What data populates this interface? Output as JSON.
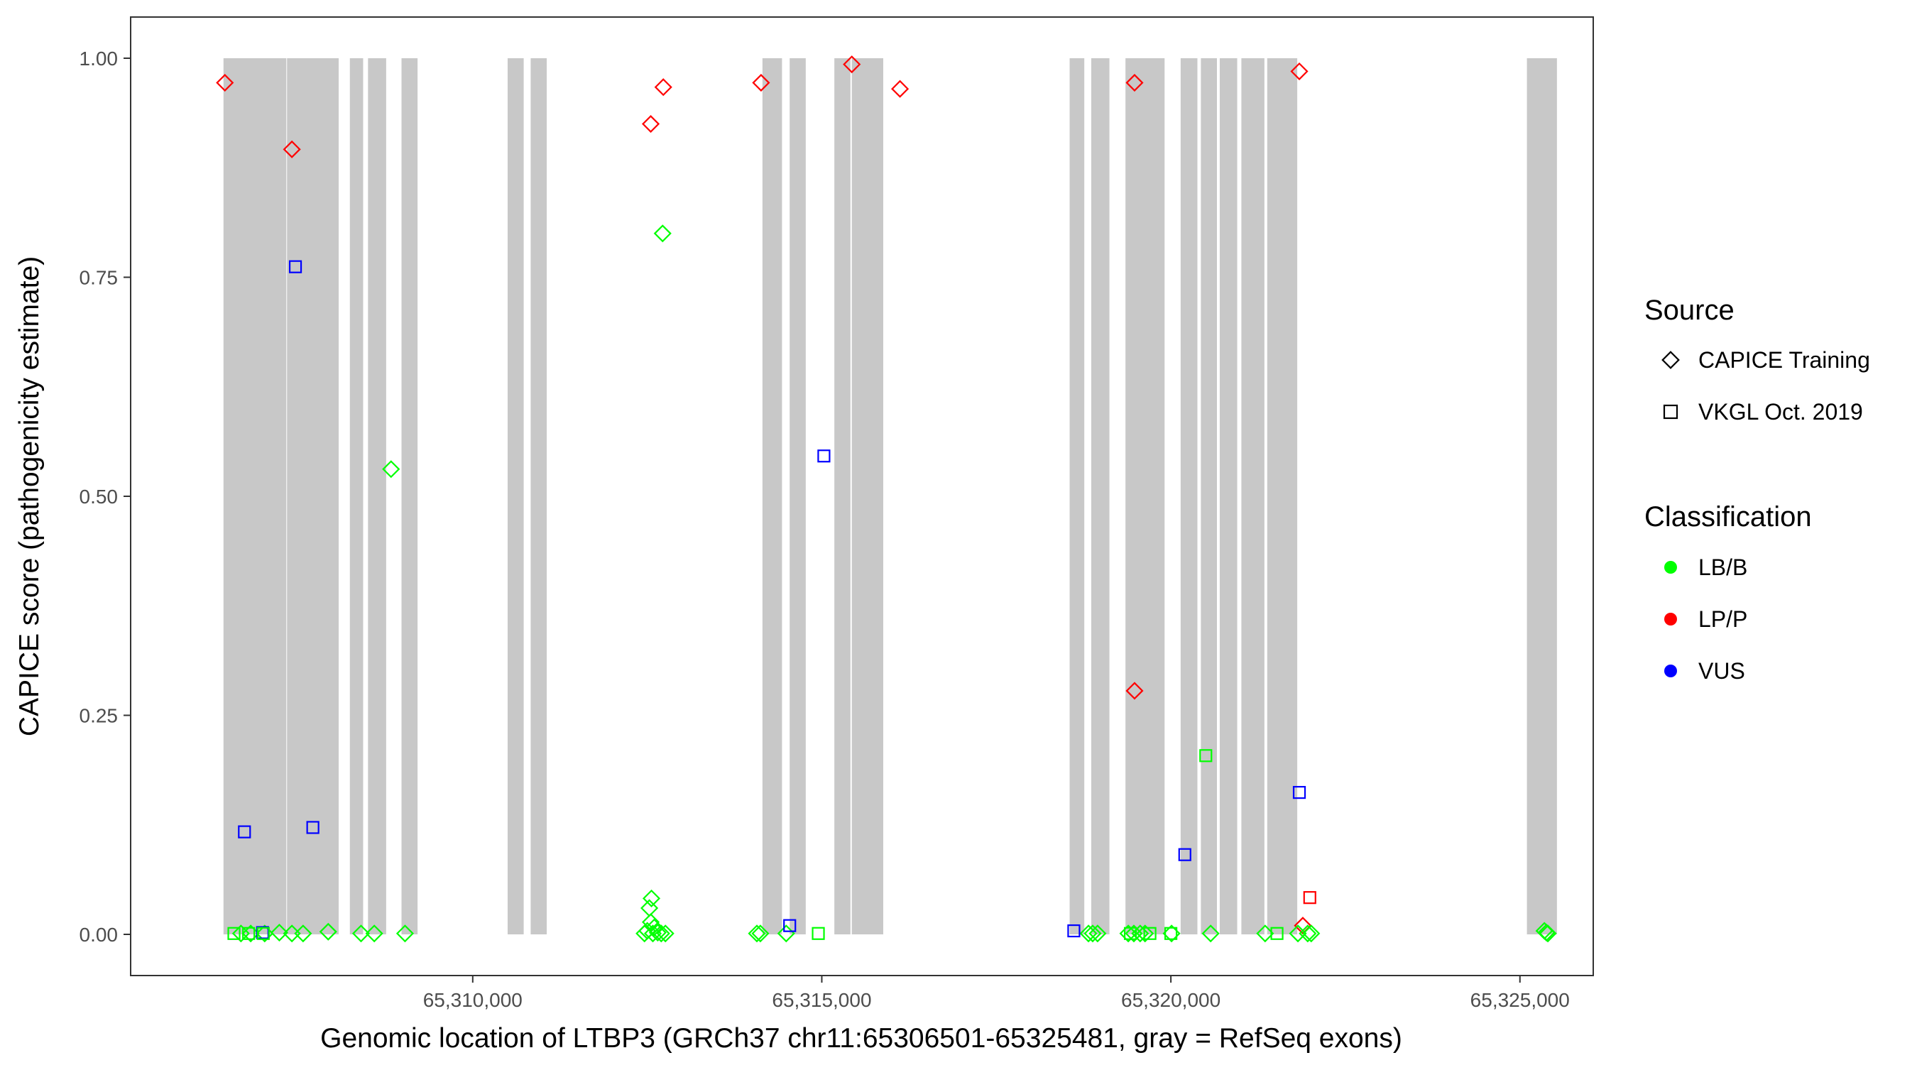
{
  "chart_data": {
    "type": "scatter",
    "xlabel": "Genomic location of LTBP3 (GRCh37 chr11:65306501-65325481, gray = RefSeq exons)",
    "ylabel": "CAPICE score (pathogenicity estimate)",
    "xlim": [
      65305100,
      65326050
    ],
    "ylim": [
      -0.047,
      1.047
    ],
    "x_ticks": [
      65310000,
      65315000,
      65320000,
      65325000
    ],
    "x_tick_labels": [
      "65,310,000",
      "65,315,000",
      "65,320,000",
      "65,325,000"
    ],
    "y_ticks": [
      0,
      0.25,
      0.5,
      0.75,
      1.0
    ],
    "y_tick_labels": [
      "0.00",
      "0.25",
      "0.50",
      "0.75",
      "1.00"
    ],
    "grid": false,
    "exons_color": "#c8c8c8",
    "exons": [
      [
        65306430,
        65307330
      ],
      [
        65307340,
        65308080
      ],
      [
        65308240,
        65308430
      ],
      [
        65308500,
        65308760
      ],
      [
        65308980,
        65309210
      ],
      [
        65310500,
        65310730
      ],
      [
        65310830,
        65311060
      ],
      [
        65314150,
        65314430
      ],
      [
        65314540,
        65314770
      ],
      [
        65315180,
        65315410
      ],
      [
        65315430,
        65315880
      ],
      [
        65318550,
        65318760
      ],
      [
        65318860,
        65319120
      ],
      [
        65319350,
        65319910
      ],
      [
        65320140,
        65320380
      ],
      [
        65320430,
        65320660
      ],
      [
        65320700,
        65320950
      ],
      [
        65321010,
        65321340
      ],
      [
        65321380,
        65321810
      ],
      [
        65325100,
        65325530
      ]
    ],
    "legend": {
      "position": "right",
      "source_title": "Source",
      "source_entries": [
        {
          "label": "CAPICE Training",
          "shape": "diamond"
        },
        {
          "label": "VKGL Oct. 2019",
          "shape": "square"
        }
      ],
      "class_title": "Classification",
      "class_entries": [
        {
          "label": "LB/B",
          "color": "#00ff00"
        },
        {
          "label": "LP/P",
          "color": "#ff0000"
        },
        {
          "label": "VUS",
          "color": "#0000ff"
        }
      ]
    },
    "series": [
      {
        "name": "CAPICE Training",
        "classification": "LP/P",
        "shape": "diamond",
        "color": "#ff0000",
        "points": [
          [
            65306450,
            0.972
          ],
          [
            65307410,
            0.896
          ],
          [
            65312550,
            0.925
          ],
          [
            65312730,
            0.967
          ],
          [
            65314130,
            0.972
          ],
          [
            65315430,
            0.993
          ],
          [
            65316120,
            0.965
          ],
          [
            65319480,
            0.972
          ],
          [
            65319480,
            0.278
          ],
          [
            65321840,
            0.985
          ],
          [
            65321890,
            0.01
          ]
        ]
      },
      {
        "name": "CAPICE Training",
        "classification": "LB/B",
        "shape": "diamond",
        "color": "#00ff00",
        "points": [
          [
            65308830,
            0.531
          ],
          [
            65312720,
            0.8
          ],
          [
            65312560,
            0.041
          ],
          [
            65312530,
            0.03
          ],
          [
            65312550,
            0.014
          ],
          [
            65312600,
            0.008
          ],
          [
            65312500,
            0.004
          ],
          [
            65312650,
            0.002
          ],
          [
            65312700,
            0.001
          ],
          [
            65312760,
            0.001
          ],
          [
            65312580,
            0.001
          ],
          [
            65312460,
            0.001
          ],
          [
            65306680,
            0.001
          ],
          [
            65306820,
            0.001
          ],
          [
            65307020,
            0.001
          ],
          [
            65307230,
            0.002
          ],
          [
            65307410,
            0.001
          ],
          [
            65307570,
            0.001
          ],
          [
            65307930,
            0.003
          ],
          [
            65308400,
            0.001
          ],
          [
            65308590,
            0.001
          ],
          [
            65309030,
            0.001
          ],
          [
            65314070,
            0.001
          ],
          [
            65314120,
            0.001
          ],
          [
            65314490,
            0.001
          ],
          [
            65318820,
            0.001
          ],
          [
            65318880,
            0.001
          ],
          [
            65318950,
            0.001
          ],
          [
            65319390,
            0.001
          ],
          [
            65319470,
            0.001
          ],
          [
            65319560,
            0.001
          ],
          [
            65319630,
            0.001
          ],
          [
            65320010,
            0.001
          ],
          [
            65320570,
            0.001
          ],
          [
            65321350,
            0.001
          ],
          [
            65321820,
            0.001
          ],
          [
            65321960,
            0.001
          ],
          [
            65322010,
            0.001
          ],
          [
            65325350,
            0.004
          ],
          [
            65325380,
            0.002
          ],
          [
            65325400,
            0.001
          ]
        ]
      },
      {
        "name": "VKGL Oct. 2019",
        "classification": "VUS",
        "shape": "square",
        "color": "#0000ff",
        "points": [
          [
            65306730,
            0.117
          ],
          [
            65306990,
            0.002
          ],
          [
            65307460,
            0.762
          ],
          [
            65307710,
            0.122
          ],
          [
            65314540,
            0.01
          ],
          [
            65315030,
            0.546
          ],
          [
            65318610,
            0.004
          ],
          [
            65320200,
            0.091
          ],
          [
            65321840,
            0.162
          ]
        ]
      },
      {
        "name": "VKGL Oct. 2019",
        "classification": "LP/P",
        "shape": "square",
        "color": "#ff0000",
        "points": [
          [
            65321990,
            0.042
          ]
        ]
      },
      {
        "name": "VKGL Oct. 2019",
        "classification": "LB/B",
        "shape": "square",
        "color": "#00ff00",
        "points": [
          [
            65306580,
            0.001
          ],
          [
            65306790,
            0.001
          ],
          [
            65307000,
            0.001
          ],
          [
            65314950,
            0.001
          ],
          [
            65319420,
            0.001
          ],
          [
            65319700,
            0.001
          ],
          [
            65320000,
            0.001
          ],
          [
            65320500,
            0.204
          ],
          [
            65321520,
            0.001
          ]
        ]
      }
    ]
  }
}
